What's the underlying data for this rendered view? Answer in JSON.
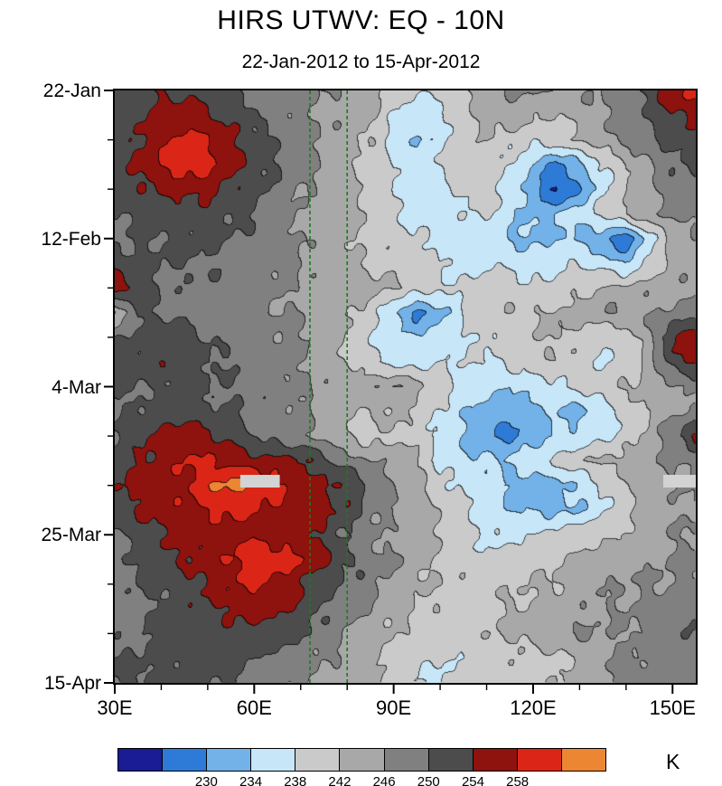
{
  "chart_data": {
    "type": "heatmap",
    "title": "HIRS UTWV: EQ - 10N",
    "subtitle": "22-Jan-2012 to 15-Apr-2012",
    "x_range": [
      30,
      155
    ],
    "x_ticks_major": [
      30,
      60,
      90,
      120,
      150
    ],
    "x_tick_labels": [
      "30E",
      "60E",
      "90E",
      "120E",
      "150E"
    ],
    "x_ticks_minor": [
      40,
      50,
      70,
      80,
      100,
      110,
      130,
      140
    ],
    "y_range_days": [
      0,
      84
    ],
    "y_ticks_major_days": [
      0,
      21,
      42,
      63,
      84
    ],
    "y_tick_labels": [
      "22-Jan",
      "12-Feb",
      "4-Mar",
      "25-Mar",
      "15-Apr"
    ],
    "y_ticks_minor_days": [
      7,
      14,
      28,
      35,
      49,
      56,
      70,
      77
    ],
    "reference_lines": {
      "color": "#1c7c1c",
      "lons": [
        72,
        80
      ]
    },
    "missing_data": [
      {
        "lon": [
          57,
          65.5
        ],
        "day": [
          54.5,
          56.3
        ]
      },
      {
        "lon": [
          148,
          155
        ],
        "day": [
          54.5,
          56.3
        ]
      }
    ],
    "missing_color": "#D3D3D3",
    "colorbar": {
      "unit": "K",
      "boundaries": [
        226,
        230,
        234,
        238,
        242,
        246,
        250,
        254,
        258,
        262
      ],
      "tick_labels": [
        "230",
        "234",
        "238",
        "242",
        "246",
        "250",
        "254",
        "258"
      ],
      "colors": [
        "#191C94",
        "#2E7BD7",
        "#72B2E9",
        "#C7E6F8",
        "#CACACA",
        "#A8A8A8",
        "#808080",
        "#4C4C4C",
        "#8E120D",
        "#DB2617",
        "#ED8633"
      ]
    },
    "grid_lons": [
      30,
      35,
      40,
      45,
      50,
      55,
      60,
      65,
      70,
      75,
      80,
      85,
      90,
      95,
      100,
      105,
      110,
      115,
      120,
      125,
      130,
      135,
      140,
      145,
      150,
      155
    ],
    "grid_days_step": 3.5,
    "values": [
      [
        250,
        252,
        254,
        253,
        252,
        250,
        249,
        248,
        247,
        246,
        245,
        244,
        240,
        238,
        239,
        242,
        244,
        246,
        247,
        246,
        245,
        246,
        248,
        252,
        257,
        259
      ],
      [
        251,
        253,
        256,
        257,
        255,
        252,
        250,
        248,
        247,
        246,
        244,
        242,
        238,
        235,
        237,
        240,
        243,
        244,
        243,
        242,
        244,
        246,
        248,
        250,
        254,
        256
      ],
      [
        252,
        254,
        257,
        259,
        258,
        255,
        252,
        249,
        247,
        246,
        244,
        242,
        236,
        233,
        236,
        240,
        242,
        240,
        239,
        240,
        242,
        245,
        247,
        249,
        251,
        252
      ],
      [
        252,
        255,
        258,
        260,
        259,
        256,
        253,
        250,
        247,
        245,
        243,
        241,
        238,
        236,
        238,
        240,
        241,
        238,
        234,
        228,
        233,
        238,
        242,
        246,
        249,
        250
      ],
      [
        251,
        253,
        255,
        256,
        255,
        253,
        251,
        249,
        247,
        245,
        243,
        240,
        238,
        236,
        237,
        239,
        240,
        236,
        232,
        225,
        230,
        236,
        241,
        245,
        248,
        249
      ],
      [
        250,
        251,
        252,
        253,
        252,
        251,
        250,
        248,
        246,
        245,
        243,
        241,
        239,
        237,
        236,
        237,
        238,
        235,
        233,
        234,
        236,
        239,
        242,
        245,
        247,
        248
      ],
      [
        249,
        250,
        250,
        251,
        251,
        250,
        249,
        247,
        246,
        244,
        243,
        241,
        240,
        238,
        236,
        235,
        236,
        234,
        233,
        234,
        233,
        231,
        227,
        236,
        243,
        246
      ],
      [
        253,
        251,
        250,
        250,
        250,
        249,
        248,
        247,
        246,
        244,
        243,
        242,
        241,
        240,
        238,
        237,
        238,
        237,
        236,
        237,
        238,
        236,
        234,
        238,
        243,
        245
      ],
      [
        257,
        253,
        250,
        249,
        249,
        248,
        248,
        247,
        246,
        245,
        244,
        243,
        242,
        241,
        239,
        238,
        239,
        240,
        239,
        240,
        241,
        242,
        243,
        244,
        245,
        246
      ],
      [
        240,
        251,
        250,
        249,
        248,
        248,
        247,
        246,
        246,
        245,
        243,
        240,
        234,
        229,
        233,
        238,
        240,
        241,
        242,
        243,
        244,
        245,
        246,
        246,
        247,
        248
      ],
      [
        250,
        251,
        252,
        251,
        250,
        249,
        248,
        247,
        246,
        244,
        242,
        238,
        235,
        234,
        236,
        238,
        239,
        240,
        241,
        242,
        241,
        239,
        240,
        244,
        254,
        257
      ],
      [
        251,
        252,
        253,
        252,
        251,
        250,
        248,
        247,
        246,
        244,
        242,
        239,
        237,
        236,
        237,
        238,
        238,
        239,
        240,
        241,
        240,
        238,
        239,
        243,
        252,
        255
      ],
      [
        250,
        250,
        251,
        251,
        250,
        249,
        248,
        248,
        247,
        246,
        245,
        244,
        246,
        244,
        240,
        237,
        235,
        234,
        236,
        238,
        239,
        240,
        242,
        244,
        246,
        247
      ],
      [
        249,
        250,
        251,
        252,
        251,
        250,
        249,
        248,
        247,
        245,
        243,
        242,
        243,
        241,
        238,
        235,
        232,
        231,
        233,
        235,
        233,
        236,
        239,
        242,
        245,
        246
      ],
      [
        251,
        253,
        255,
        256,
        255,
        253,
        250,
        248,
        246,
        244,
        242,
        241,
        242,
        240,
        237,
        234,
        232,
        229,
        231,
        233,
        235,
        237,
        240,
        243,
        248,
        255
      ],
      [
        252,
        254,
        256,
        258,
        258,
        257,
        256,
        255,
        254,
        252,
        248,
        246,
        244,
        242,
        237,
        235,
        234,
        235,
        237,
        239,
        241,
        243,
        244,
        245,
        246,
        247
      ],
      [
        253,
        255,
        257,
        258,
        261,
        263,
        261,
        259,
        256,
        255,
        253,
        249,
        246,
        244,
        240,
        237,
        235,
        233,
        231,
        233,
        235,
        238,
        241,
        244,
        246,
        247
      ],
      [
        252,
        254,
        256,
        257,
        258,
        259,
        258,
        257,
        256,
        255,
        253,
        248,
        246,
        244,
        242,
        239,
        236,
        234,
        233,
        233,
        234,
        237,
        240,
        243,
        245,
        246
      ],
      [
        250,
        252,
        254,
        255,
        256,
        257,
        257,
        256,
        255,
        253,
        250,
        247,
        245,
        243,
        242,
        240,
        238,
        237,
        238,
        239,
        240,
        242,
        243,
        244,
        245,
        246
      ],
      [
        249,
        251,
        253,
        254,
        256,
        258,
        261,
        260,
        258,
        255,
        251,
        248,
        246,
        244,
        241,
        240,
        239,
        240,
        241,
        242,
        243,
        244,
        244,
        245,
        246,
        247
      ],
      [
        248,
        250,
        252,
        253,
        255,
        257,
        258,
        257,
        255,
        252,
        249,
        247,
        245,
        243,
        242,
        241,
        240,
        241,
        242,
        243,
        244,
        245,
        245,
        246,
        247,
        248
      ],
      [
        248,
        249,
        250,
        252,
        253,
        255,
        256,
        255,
        253,
        250,
        248,
        246,
        244,
        242,
        241,
        240,
        241,
        242,
        243,
        244,
        245,
        246,
        246,
        247,
        248,
        249
      ],
      [
        249,
        250,
        251,
        251,
        252,
        253,
        253,
        252,
        250,
        248,
        246,
        244,
        242,
        240,
        239,
        240,
        242,
        243,
        244,
        245,
        246,
        246,
        247,
        247,
        248,
        249
      ],
      [
        250,
        250,
        251,
        252,
        252,
        251,
        250,
        249,
        248,
        246,
        245,
        243,
        241,
        239,
        238,
        239,
        240,
        241,
        240,
        241,
        243,
        245,
        246,
        247,
        248,
        249
      ],
      [
        250,
        251,
        252,
        252,
        251,
        250,
        249,
        248,
        247,
        246,
        244,
        242,
        240,
        239,
        238,
        239,
        240,
        239,
        240,
        242,
        244,
        246,
        247,
        248,
        248,
        249
      ]
    ]
  }
}
